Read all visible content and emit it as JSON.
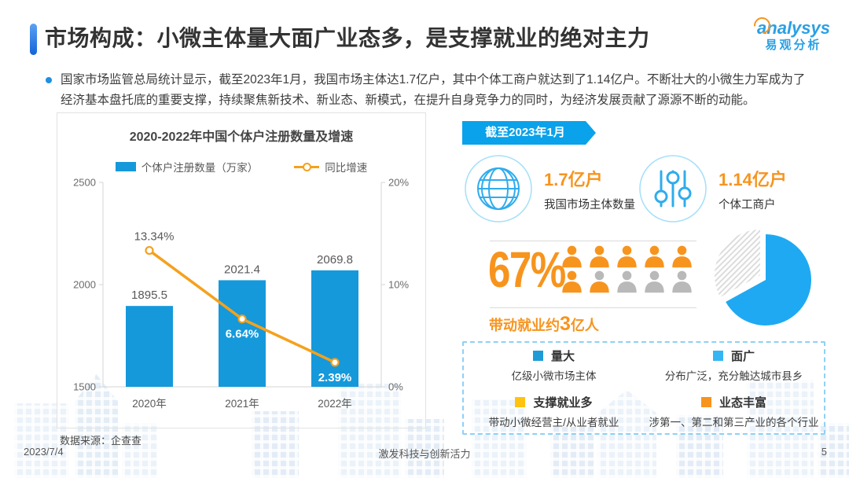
{
  "header": {
    "title": "市场构成：小微主体量大面广业态多，是支撑就业的绝对主力",
    "logo": {
      "en": "analysys",
      "cn": "易观分析"
    },
    "bullet_text": "国家市场监管总局统计显示，截至2023年1月，我国市场主体达1.7亿户，其中个体工商户就达到了1.14亿户。不断壮大的小微生力军成为了经济基本盘托底的重要支撑，持续聚焦新技术、新业态、新模式，在提升自身竞争力的同时，为经济发展贡献了源源不断的动能。"
  },
  "chart_data": [
    {
      "type": "bar+line",
      "title": "2020-2022年中国个体户注册数量及增速",
      "categories": [
        "2020年",
        "2021年",
        "2022年"
      ],
      "series": [
        {
          "name": "个体户注册数量（万家）",
          "type": "bar",
          "values": [
            1895.5,
            2021.4,
            2069.8
          ],
          "color": "#1599DB",
          "axis": "left"
        },
        {
          "name": "同比增速",
          "type": "line",
          "values": [
            13.34,
            6.64,
            2.39
          ],
          "color": "#F5A11C",
          "axis": "right"
        }
      ],
      "left_axis": {
        "min": 1500,
        "max": 2500,
        "ticks": [
          "2500",
          "2000",
          "1500"
        ]
      },
      "right_axis": {
        "min": 0,
        "max": 20,
        "ticks": [
          "20%",
          "10%",
          "0%"
        ]
      },
      "grid": false,
      "legend_position": "top",
      "source": "数据来源：企查查"
    },
    {
      "type": "pie",
      "values": [
        67,
        33
      ],
      "colors": [
        "#1FA9F2",
        "#DCDCDC"
      ],
      "exploded_slice": 1,
      "start_angle_deg": 0
    }
  ],
  "right": {
    "banner": "截至2023年1月",
    "stats": [
      {
        "icon": "globe-icon",
        "value": "1.7亿户",
        "label": "我国市场主体数量"
      },
      {
        "icon": "sliders-icon",
        "value": "1.14亿户",
        "label": "个体工商户"
      }
    ],
    "employment": {
      "percent": "67%",
      "caption_prefix": "带动就业约",
      "caption_big": "3",
      "caption_suffix": "亿人",
      "people_colors": [
        "orange",
        "orange",
        "orange",
        "orange",
        "orange",
        "orange",
        "mixed",
        "gray",
        "gray",
        "gray"
      ],
      "orange_hex": "#F7941E",
      "gray_hex": "#B9B9B9"
    },
    "legend_box": [
      {
        "color": "#1E9BD7",
        "title": "量大",
        "desc": "亿级小微市场主体"
      },
      {
        "color": "#35B5F3",
        "title": "面广",
        "desc": "分布广泛，充分触达城市县乡"
      },
      {
        "color": "#FFC20E",
        "title": "支撑就业多",
        "desc": "带动小微经营主/从业者就业"
      },
      {
        "color": "#F7941E",
        "title": "业态丰富",
        "desc": "涉第一、第二和第三产业的各个行业"
      }
    ]
  },
  "footer": {
    "date": "2023/7/4",
    "center": "激发科技与创新活力",
    "page": "5"
  }
}
